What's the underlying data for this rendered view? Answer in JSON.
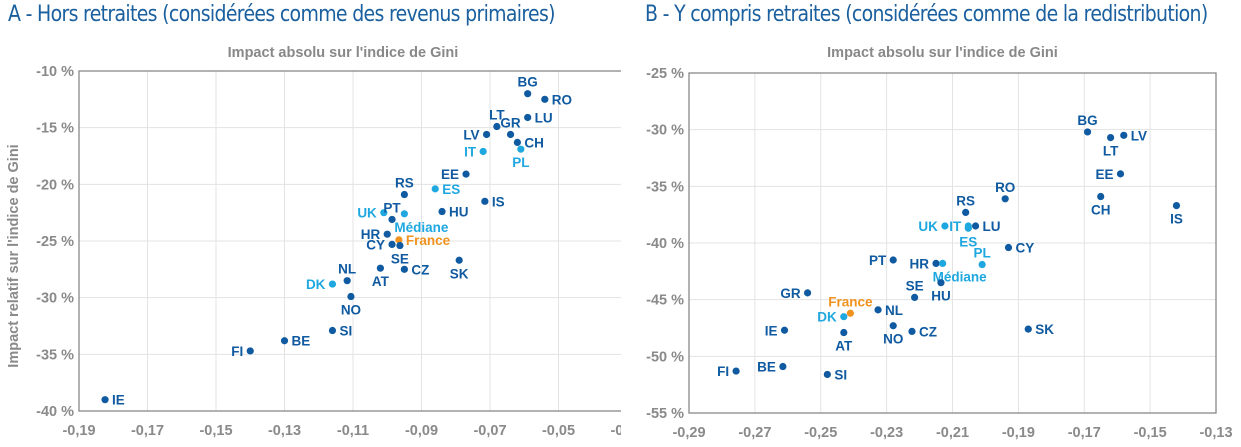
{
  "panels": {
    "a": {
      "title": "A -  Hors retraites (considérées comme des revenus primaires)"
    },
    "b": {
      "title": "B -  Y compris retraites (considérées comme de la redistribution)"
    }
  },
  "colors": {
    "country": "#0f5aa0",
    "highlight": "#1fa8e0",
    "france": "#f0921e"
  },
  "chart_data": [
    {
      "type": "scatter",
      "id": "a",
      "title": "Impact absolu sur l'indice de Gini",
      "xlabel": "Impact absolu sur l'indice de Gini",
      "ylabel": "Impact relatif sur l'indice de Gini",
      "xlim": [
        -0.19,
        -0.03
      ],
      "ylim": [
        -40,
        -10
      ],
      "xticks": [
        -0.19,
        -0.17,
        -0.15,
        -0.13,
        -0.11,
        -0.09,
        -0.07,
        -0.05,
        -0.03
      ],
      "xtick_labels": [
        "-0,19",
        "-0,17",
        "-0,15",
        "-0,13",
        "-0,11",
        "-0,09",
        "-0,07",
        "-0,05",
        "-0,03"
      ],
      "yticks": [
        -10,
        -15,
        -20,
        -25,
        -30,
        -35,
        -40
      ],
      "ytick_labels": [
        "-10 %",
        "-15 %",
        "-20 %",
        "-25 %",
        "-30 %",
        "-35 %",
        "-40 %"
      ],
      "grid": true,
      "points": [
        {
          "label": "BG",
          "x": -0.059,
          "y": -12.0,
          "group": "country",
          "pos": "top"
        },
        {
          "label": "RO",
          "x": -0.054,
          "y": -12.5,
          "group": "country",
          "pos": "right"
        },
        {
          "label": "LU",
          "x": -0.059,
          "y": -14.1,
          "group": "country",
          "pos": "right"
        },
        {
          "label": "LT",
          "x": -0.068,
          "y": -14.9,
          "group": "country",
          "pos": "top"
        },
        {
          "label": "GR",
          "x": -0.064,
          "y": -15.6,
          "group": "country",
          "pos": "top"
        },
        {
          "label": "LV",
          "x": -0.071,
          "y": -15.6,
          "group": "country",
          "pos": "left"
        },
        {
          "label": "CH",
          "x": -0.062,
          "y": -16.3,
          "group": "country",
          "pos": "right"
        },
        {
          "label": "PL",
          "x": -0.061,
          "y": -16.9,
          "group": "highlight",
          "pos": "bottom"
        },
        {
          "label": "IT",
          "x": -0.072,
          "y": -17.1,
          "group": "highlight",
          "pos": "left"
        },
        {
          "label": "EE",
          "x": -0.077,
          "y": -19.1,
          "group": "country",
          "pos": "left"
        },
        {
          "label": "ES",
          "x": -0.086,
          "y": -20.4,
          "group": "highlight",
          "pos": "right"
        },
        {
          "label": "RS",
          "x": -0.095,
          "y": -20.9,
          "group": "country",
          "pos": "top"
        },
        {
          "label": "IS",
          "x": -0.0715,
          "y": -21.5,
          "group": "country",
          "pos": "right"
        },
        {
          "label": "HU",
          "x": -0.084,
          "y": -22.4,
          "group": "country",
          "pos": "right"
        },
        {
          "label": "UK",
          "x": -0.101,
          "y": -22.5,
          "group": "highlight",
          "pos": "left"
        },
        {
          "label": "Médiane",
          "x": -0.095,
          "y": -22.6,
          "group": "highlight",
          "pos": "bottom-right"
        },
        {
          "label": "PT",
          "x": -0.0986,
          "y": -23.1,
          "group": "country",
          "pos": "top"
        },
        {
          "label": "HR",
          "x": -0.1,
          "y": -24.4,
          "group": "country",
          "pos": "left"
        },
        {
          "label": "France",
          "x": -0.0966,
          "y": -24.9,
          "group": "france",
          "pos": "right"
        },
        {
          "label": "CY",
          "x": -0.0986,
          "y": -25.3,
          "group": "country",
          "pos": "left"
        },
        {
          "label": "SE",
          "x": -0.0963,
          "y": -25.4,
          "group": "country",
          "pos": "bottom"
        },
        {
          "label": "SK",
          "x": -0.079,
          "y": -26.7,
          "group": "country",
          "pos": "bottom"
        },
        {
          "label": "AT",
          "x": -0.102,
          "y": -27.4,
          "group": "country",
          "pos": "bottom"
        },
        {
          "label": "CZ",
          "x": -0.095,
          "y": -27.5,
          "group": "country",
          "pos": "right"
        },
        {
          "label": "NL",
          "x": -0.1117,
          "y": -28.5,
          "group": "country",
          "pos": "top"
        },
        {
          "label": "DK",
          "x": -0.116,
          "y": -28.8,
          "group": "highlight",
          "pos": "left"
        },
        {
          "label": "NO",
          "x": -0.1106,
          "y": -29.9,
          "group": "country",
          "pos": "bottom"
        },
        {
          "label": "SI",
          "x": -0.116,
          "y": -32.9,
          "group": "country",
          "pos": "right"
        },
        {
          "label": "BE",
          "x": -0.13,
          "y": -33.8,
          "group": "country",
          "pos": "right"
        },
        {
          "label": "FI",
          "x": -0.14,
          "y": -34.7,
          "group": "country",
          "pos": "left"
        },
        {
          "label": "IE",
          "x": -0.1824,
          "y": -39.0,
          "group": "country",
          "pos": "right"
        }
      ]
    },
    {
      "type": "scatter",
      "id": "b",
      "title": "Impact absolu sur l'indice de Gini",
      "xlabel": "Impact absolu sur l'indice de Gini",
      "ylabel": "",
      "xlim": [
        -0.29,
        -0.13
      ],
      "ylim": [
        -55,
        -25
      ],
      "xticks": [
        -0.29,
        -0.27,
        -0.25,
        -0.23,
        -0.21,
        -0.19,
        -0.17,
        -0.15,
        -0.13
      ],
      "xtick_labels": [
        "-0,29",
        "-0,27",
        "-0,25",
        "-0,23",
        "-0,21",
        "-0,19",
        "-0,17",
        "-0,15",
        "-0,13"
      ],
      "yticks": [
        -25,
        -30,
        -35,
        -40,
        -45,
        -50,
        -55
      ],
      "ytick_labels": [
        "-25 %",
        "-30 %",
        "-35 %",
        "-40 %",
        "-45 %",
        "-50 %",
        "-55 %"
      ],
      "grid": true,
      "points": [
        {
          "label": "BG",
          "x": -0.169,
          "y": -30.2,
          "group": "country",
          "pos": "top"
        },
        {
          "label": "LT",
          "x": -0.162,
          "y": -30.7,
          "group": "country",
          "pos": "bottom"
        },
        {
          "label": "LV",
          "x": -0.158,
          "y": -30.5,
          "group": "country",
          "pos": "right"
        },
        {
          "label": "EE",
          "x": -0.159,
          "y": -33.9,
          "group": "country",
          "pos": "left"
        },
        {
          "label": "CH",
          "x": -0.165,
          "y": -35.9,
          "group": "country",
          "pos": "bottom"
        },
        {
          "label": "IS",
          "x": -0.142,
          "y": -36.7,
          "group": "country",
          "pos": "bottom"
        },
        {
          "label": "RO",
          "x": -0.194,
          "y": -36.1,
          "group": "country",
          "pos": "top"
        },
        {
          "label": "RS",
          "x": -0.206,
          "y": -37.3,
          "group": "country",
          "pos": "top"
        },
        {
          "label": "UK",
          "x": -0.2123,
          "y": -38.5,
          "group": "highlight",
          "pos": "left"
        },
        {
          "label": "IT",
          "x": -0.2052,
          "y": -38.5,
          "group": "highlight",
          "pos": "left"
        },
        {
          "label": "LU",
          "x": -0.203,
          "y": -38.5,
          "group": "country",
          "pos": "right"
        },
        {
          "label": "ES",
          "x": -0.2052,
          "y": -38.7,
          "group": "highlight",
          "pos": "bottom"
        },
        {
          "label": "CY",
          "x": -0.193,
          "y": -40.4,
          "group": "country",
          "pos": "right"
        },
        {
          "label": "PT",
          "x": -0.228,
          "y": -41.5,
          "group": "country",
          "pos": "left"
        },
        {
          "label": "PL",
          "x": -0.201,
          "y": -41.9,
          "group": "highlight",
          "pos": "top"
        },
        {
          "label": "HR",
          "x": -0.215,
          "y": -41.8,
          "group": "country",
          "pos": "left"
        },
        {
          "label": "Médiane",
          "x": -0.213,
          "y": -41.8,
          "group": "highlight",
          "pos": "bottom-right"
        },
        {
          "label": "HU",
          "x": -0.2135,
          "y": -43.5,
          "group": "country",
          "pos": "bottom"
        },
        {
          "label": "GR",
          "x": -0.254,
          "y": -44.4,
          "group": "country",
          "pos": "left"
        },
        {
          "label": "SE",
          "x": -0.2215,
          "y": -44.8,
          "group": "country",
          "pos": "top"
        },
        {
          "label": "France",
          "x": -0.241,
          "y": -46.2,
          "group": "france",
          "pos": "top"
        },
        {
          "label": "NL",
          "x": -0.2326,
          "y": -45.9,
          "group": "country",
          "pos": "right"
        },
        {
          "label": "DK",
          "x": -0.243,
          "y": -46.5,
          "group": "highlight",
          "pos": "left"
        },
        {
          "label": "NO",
          "x": -0.228,
          "y": -47.3,
          "group": "country",
          "pos": "bottom"
        },
        {
          "label": "IE",
          "x": -0.261,
          "y": -47.7,
          "group": "country",
          "pos": "left"
        },
        {
          "label": "AT",
          "x": -0.243,
          "y": -47.9,
          "group": "country",
          "pos": "bottom"
        },
        {
          "label": "CZ",
          "x": -0.2223,
          "y": -47.8,
          "group": "country",
          "pos": "right"
        },
        {
          "label": "SK",
          "x": -0.187,
          "y": -47.6,
          "group": "country",
          "pos": "right"
        },
        {
          "label": "BE",
          "x": -0.2615,
          "y": -50.9,
          "group": "country",
          "pos": "left"
        },
        {
          "label": "FI",
          "x": -0.2757,
          "y": -51.3,
          "group": "country",
          "pos": "left"
        },
        {
          "label": "SI",
          "x": -0.248,
          "y": -51.6,
          "group": "country",
          "pos": "right"
        }
      ]
    }
  ]
}
